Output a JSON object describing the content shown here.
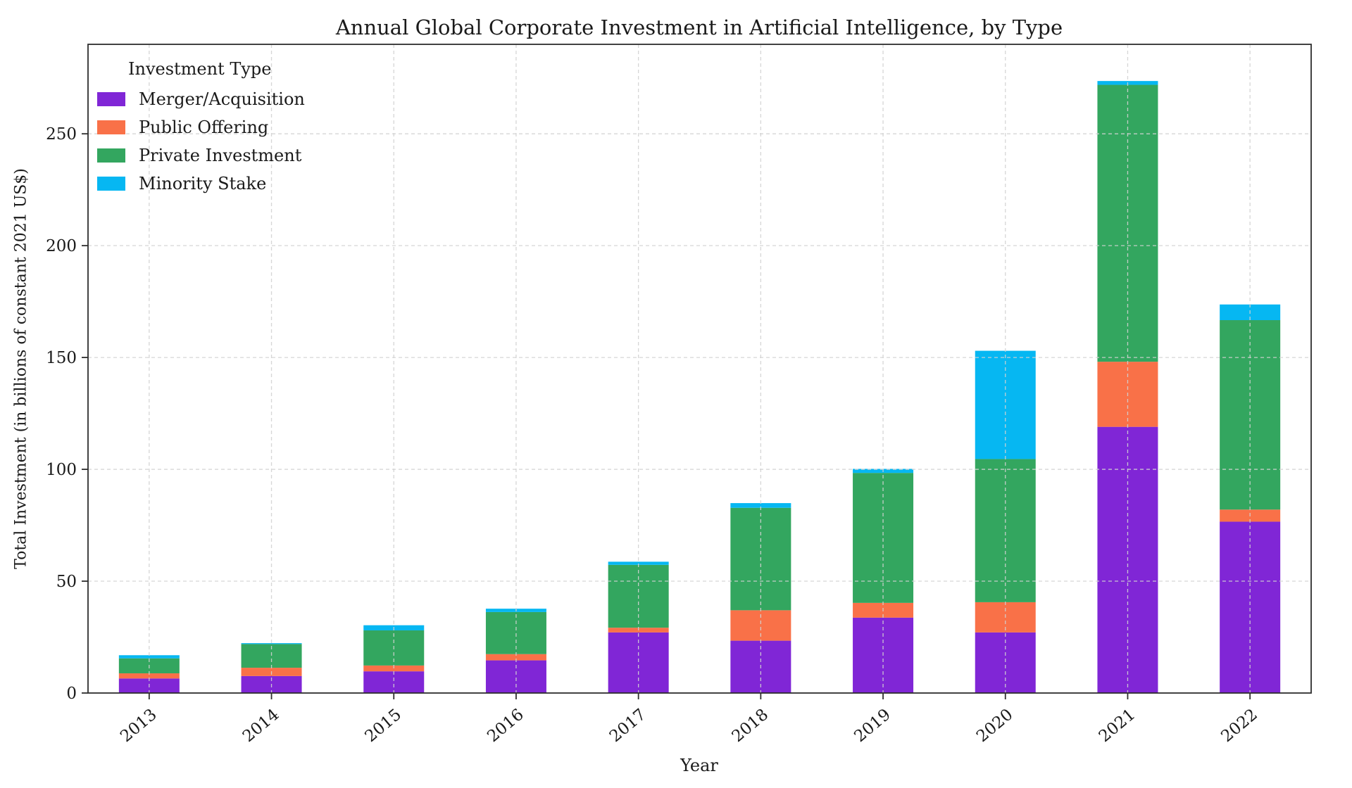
{
  "chart_data": {
    "type": "bar",
    "stacked": true,
    "title": "Annual Global Corporate Investment in Artificial Intelligence, by Type",
    "xlabel": "Year",
    "ylabel": "Total Investment (in billions of constant 2021 US$)",
    "categories": [
      "2013",
      "2014",
      "2015",
      "2016",
      "2017",
      "2018",
      "2019",
      "2020",
      "2021",
      "2022"
    ],
    "series": [
      {
        "name": "Merger/Acquisition",
        "color": "#8026D6",
        "values": [
          6.5,
          7.6,
          9.7,
          14.6,
          27.1,
          23.4,
          33.7,
          27.1,
          119.0,
          76.6
        ]
      },
      {
        "name": "Public Offering",
        "color": "#F97148",
        "values": [
          2.3,
          3.7,
          2.6,
          2.8,
          2.1,
          13.6,
          6.6,
          13.5,
          29.1,
          5.4
        ]
      },
      {
        "name": "Private Investment",
        "color": "#33A65F",
        "values": [
          6.7,
          10.6,
          15.7,
          18.8,
          28.1,
          45.8,
          58.1,
          64.0,
          123.8,
          84.7
        ]
      },
      {
        "name": "Minority Stake",
        "color": "#06B7F2",
        "values": [
          1.4,
          0.4,
          2.3,
          1.5,
          1.4,
          2.1,
          1.8,
          48.4,
          1.7,
          7.0
        ]
      }
    ],
    "legend": {
      "title": "Investment Type",
      "position": "upper left"
    },
    "ylim": [
      0,
      290
    ],
    "yticks": [
      0,
      50,
      100,
      150,
      200,
      250
    ],
    "grid": true,
    "grid_style": "dashed"
  }
}
